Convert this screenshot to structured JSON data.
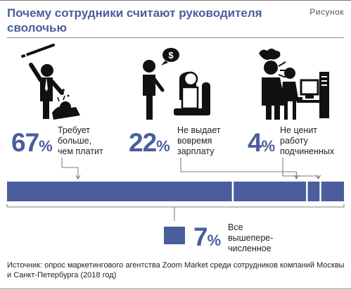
{
  "header": {
    "title": "Почему сотрудники считают руководителя сволочью",
    "figure_label": "Рисунок"
  },
  "icons": {
    "illustration_1": "boss-beating-employee-icon",
    "illustration_2": "employee-asking-money-icon",
    "illustration_3": "boss-scolding-worker-icon",
    "money_bubble_text": "$"
  },
  "chart_data": {
    "type": "bar",
    "orientation": "horizontal-stacked",
    "unit": "%",
    "color": "#4a5d9c",
    "categories": [
      "Требует больше, чем платит",
      "Не выдает вовремя зарплату",
      "Не ценит работу подчиненных",
      "Все вышеперечисленное"
    ],
    "values": [
      67,
      22,
      4,
      7
    ],
    "value_labels": [
      "67",
      "22",
      "4",
      "7"
    ],
    "captions": [
      [
        "Требует",
        "больше,",
        "чем платит"
      ],
      [
        "Не выдает",
        "вовремя",
        "зарплату"
      ],
      [
        "Не ценит",
        "работу",
        "подчиненных"
      ],
      [
        "Все",
        "вышепере-",
        "численное"
      ]
    ]
  },
  "source": "Источник: опрос маркетингового агентства Zoom Market среди сотрудников компаний Москвы и Санкт-Петербурга (2018 год)"
}
